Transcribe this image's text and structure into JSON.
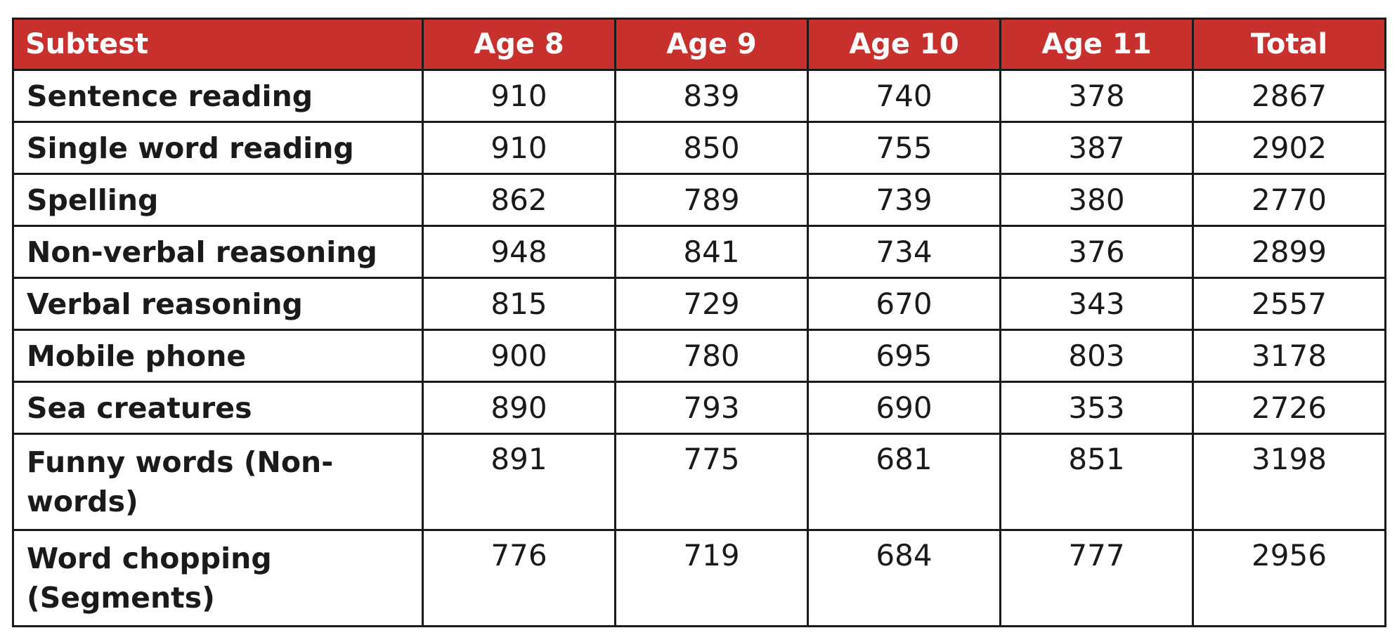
{
  "table": {
    "headers": [
      "Subtest",
      "Age 8",
      "Age 9",
      "Age 10",
      "Age 11",
      "Total"
    ],
    "rows": [
      {
        "subtest": "Sentence reading",
        "values": [
          "910",
          "839",
          "740",
          "378",
          "2867"
        ]
      },
      {
        "subtest": "Single word reading",
        "values": [
          "910",
          "850",
          "755",
          "387",
          "2902"
        ]
      },
      {
        "subtest": "Spelling",
        "values": [
          "862",
          "789",
          "739",
          "380",
          "2770"
        ]
      },
      {
        "subtest": "Non-verbal reasoning",
        "values": [
          "948",
          "841",
          "734",
          "376",
          "2899"
        ]
      },
      {
        "subtest": "Verbal reasoning",
        "values": [
          "815",
          "729",
          "670",
          "343",
          "2557"
        ]
      },
      {
        "subtest": "Mobile phone",
        "values": [
          "900",
          "780",
          "695",
          "803",
          "3178"
        ]
      },
      {
        "subtest": "Sea creatures",
        "values": [
          "890",
          "793",
          "690",
          "353",
          "2726"
        ]
      },
      {
        "subtest": "Funny words (Non-words)",
        "values": [
          "891",
          "775",
          "681",
          "851",
          "3198"
        ]
      },
      {
        "subtest": "Word chopping (Segments)",
        "values": [
          "776",
          "719",
          "684",
          "777",
          "2956"
        ]
      }
    ]
  },
  "colors": {
    "header_background": "#c8302e",
    "header_text": "#ffffff",
    "border": "#1a1a1a",
    "body_text": "#1a1a1a"
  }
}
